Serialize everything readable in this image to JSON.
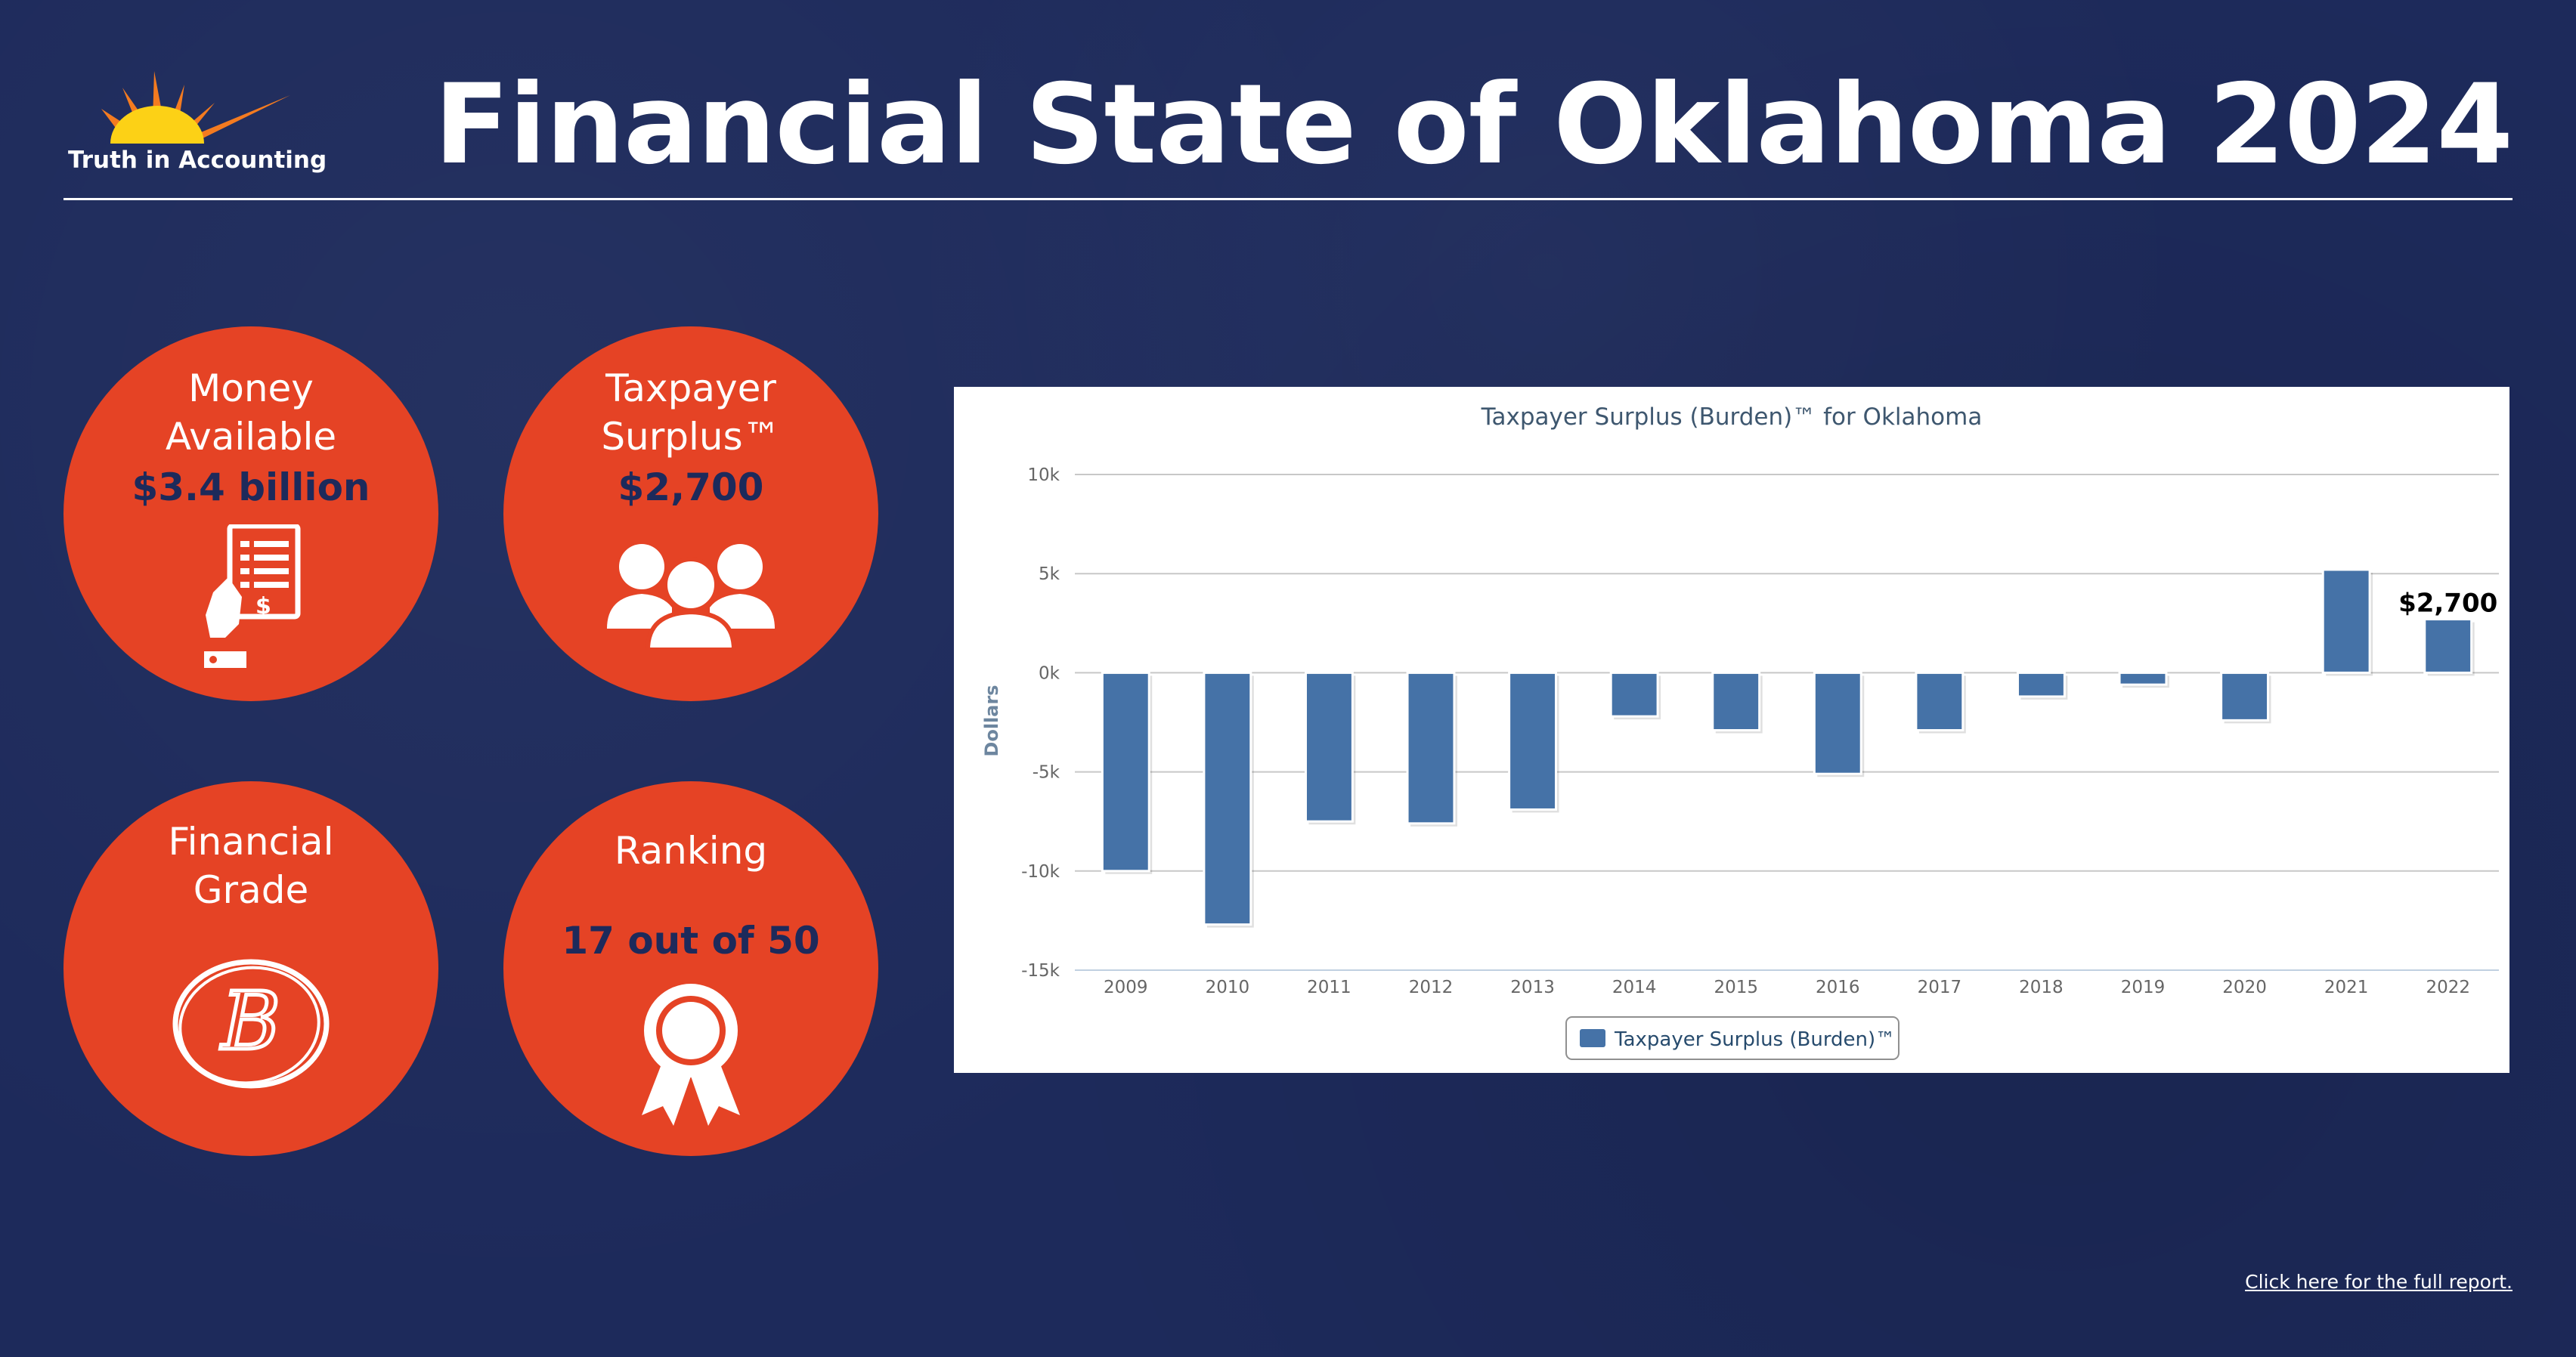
{
  "header": {
    "logo_text": "Truth in Accounting",
    "title": "Financial State of Oklahoma 2024"
  },
  "cards": {
    "money": {
      "label_line1": "Money",
      "label_line2": "Available",
      "value": "$3.4 billion",
      "icon": "bill-payment-icon"
    },
    "surplus": {
      "label_line1": "Taxpayer",
      "label_line2": "Surplus™",
      "value": "$2,700",
      "icon": "people-group-icon"
    },
    "grade": {
      "label_line1": "Financial",
      "label_line2": "Grade",
      "value": "B",
      "icon": "grade-b-icon"
    },
    "ranking": {
      "label": "Ranking",
      "value": "17 out of 50",
      "icon": "award-ribbon-icon"
    }
  },
  "footer": {
    "link_text": "Click here for the full report."
  },
  "colors": {
    "background": "#1d2a5b",
    "accent": "#e54325",
    "bar": "#4572a7",
    "title_text": "#3e576f"
  },
  "chart_data": {
    "type": "bar",
    "title": "Taxpayer Surplus (Burden)™ for Oklahoma",
    "ylabel": "Dollars",
    "xlabel": "",
    "categories": [
      "2009",
      "2010",
      "2011",
      "2012",
      "2013",
      "2014",
      "2015",
      "2016",
      "2017",
      "2018",
      "2019",
      "2020",
      "2021",
      "2022"
    ],
    "series": [
      {
        "name": "Taxpayer Surplus (Burden)™",
        "values": [
          -10000,
          -12700,
          -7500,
          -7600,
          -6900,
          -2200,
          -2900,
          -5100,
          -2900,
          -1200,
          -600,
          -2400,
          5200,
          2700
        ]
      }
    ],
    "ylim": [
      -15000,
      10000
    ],
    "yticks": [
      10000,
      5000,
      0,
      -5000,
      -10000,
      -15000
    ],
    "ytick_labels": [
      "10k",
      "5k",
      "0k",
      "-5k",
      "-10k",
      "-15k"
    ],
    "data_labels": [
      {
        "category": "2022",
        "text": "$2,700"
      }
    ],
    "grid": true,
    "legend_position": "bottom-center"
  }
}
